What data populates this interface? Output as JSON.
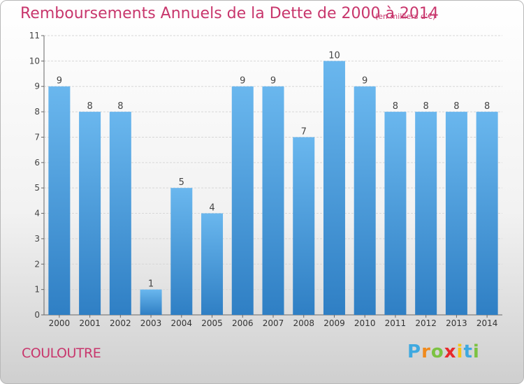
{
  "title": "Remboursements Annuels de la Dette de 2000 à 2014",
  "unit": "(en milliers d'€)",
  "commune": "COULOUTRE",
  "brand": {
    "letters": [
      "P",
      "r",
      "o",
      "x",
      "i",
      "t",
      "i"
    ],
    "colors": [
      "#3fa9e0",
      "#f08a1c",
      "#7cc242",
      "#e8292b",
      "#f5c518",
      "#3fa9e0",
      "#7cc242"
    ]
  },
  "colors": {
    "bar": "#3a8fd6",
    "bar_top": "#6ab7ee",
    "title": "#c8366c",
    "grid": "#d7d7d7"
  },
  "chart_data": {
    "type": "bar",
    "title": "Remboursements Annuels de la Dette de 2000 à 2014",
    "ylabel": "",
    "xlabel": "",
    "categories": [
      "2000",
      "2001",
      "2002",
      "2003",
      "2004",
      "2005",
      "2006",
      "2007",
      "2008",
      "2009",
      "2010",
      "2011",
      "2012",
      "2013",
      "2014"
    ],
    "values": [
      9,
      8,
      8,
      1,
      5,
      4,
      9,
      9,
      7,
      10,
      9,
      8,
      8,
      8,
      8
    ],
    "ylim": [
      0,
      11
    ],
    "yticks": [
      0,
      1,
      2,
      3,
      4,
      5,
      6,
      7,
      8,
      9,
      10,
      11
    ],
    "grid": true,
    "data_labels": true
  }
}
